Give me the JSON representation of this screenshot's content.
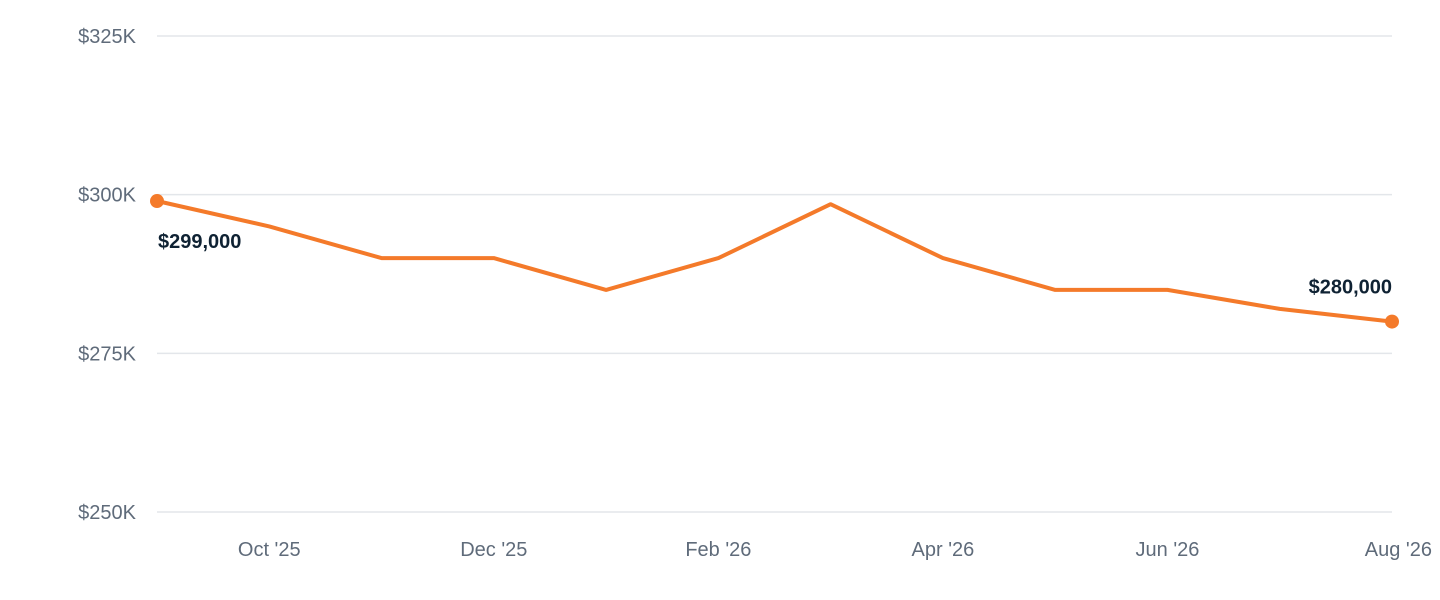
{
  "chart_data": {
    "type": "line",
    "title": "",
    "xlabel": "",
    "ylabel": "",
    "x": [
      "Sep '25",
      "Oct '25",
      "Nov '25",
      "Dec '25",
      "Jan '26",
      "Feb '26",
      "Mar '26",
      "Apr '26",
      "May '26",
      "Jun '26",
      "Jul '26",
      "Aug '26"
    ],
    "x_tick_labels": [
      "Oct '25",
      "Dec '25",
      "Feb '26",
      "Apr '26",
      "Jun '26",
      "Aug '26"
    ],
    "series": [
      {
        "values": [
          299000,
          295000,
          290000,
          290000,
          285000,
          290000,
          298500,
          290000,
          285000,
          285000,
          282000,
          280000
        ]
      }
    ],
    "ylim": [
      250000,
      325000
    ],
    "y_ticks": [
      250000,
      275000,
      300000,
      325000
    ],
    "y_tick_labels": [
      "$250K",
      "$275K",
      "$300K",
      "$325K"
    ],
    "data_labels": [
      {
        "x": "Sep '25",
        "text": "$299,000"
      },
      {
        "x": "Aug '26",
        "text": "$280,000"
      }
    ],
    "grid": true,
    "color": "#f47a2a"
  }
}
